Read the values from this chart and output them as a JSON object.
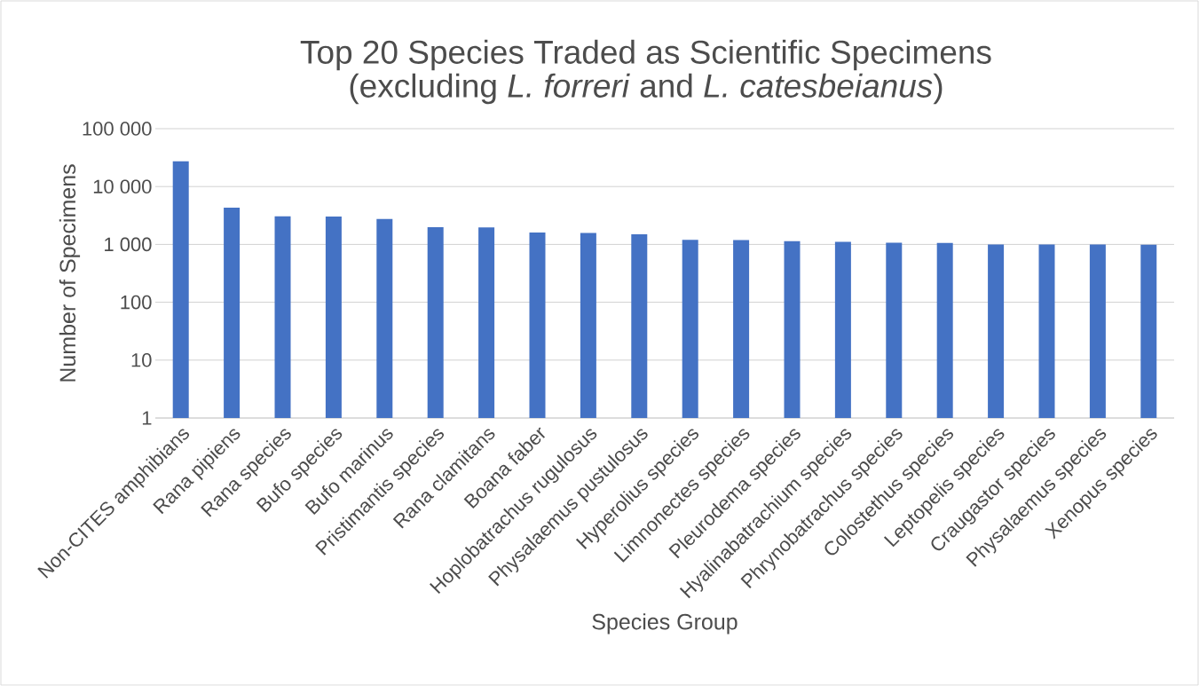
{
  "chart_data": {
    "type": "bar",
    "title": "Top 20 Species Traded as Scientific Specimens",
    "subtitle": "(excluding *L. forreri* and *L. catesbeianus*)",
    "xlabel": "Species Group",
    "ylabel": "Number of Specimens",
    "categories": [
      "Non-CITES amphibians",
      "Rana pipiens",
      "Rana species",
      "Bufo species",
      "Bufo marinus",
      "Pristimantis species",
      "Rana clamitans",
      "Boana faber",
      "Hoplobatrachus rugulosus",
      "Physalaemus pustulosus",
      "Hyperolius species",
      "Limnonectes species",
      "Pleurodema species",
      "Hyalinabatrachium species",
      "Phrynobatrachus species",
      "Colostethus species",
      "Leptopelis species",
      "Craugastor species",
      "Physalaemus species",
      "Xenopus species"
    ],
    "values": [
      27400,
      4330,
      3060,
      3020,
      2740,
      1990,
      1960,
      1600,
      1580,
      1500,
      1200,
      1190,
      1140,
      1110,
      1070,
      1060,
      1000,
      1000,
      1000,
      990
    ],
    "color": "#4472c4",
    "log": "y",
    "ylim": [
      1,
      100000
    ],
    "yticks": [
      1,
      10,
      100,
      {
        "value": 1000,
        "label": "1 000"
      },
      {
        "value": 10000,
        "label": "10 000"
      },
      {
        "value": 100000,
        "label": "100 000"
      }
    ],
    "grid": "y"
  }
}
